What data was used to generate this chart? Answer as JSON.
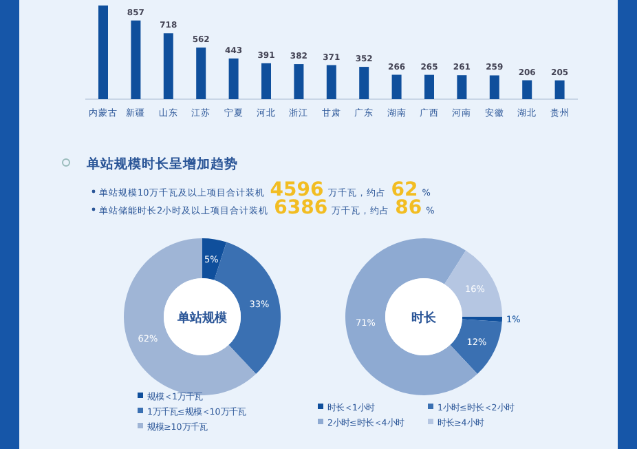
{
  "chart_data": [
    {
      "type": "bar",
      "categories": [
        "内蒙古",
        "新疆",
        "山东",
        "江苏",
        "宁夏",
        "河北",
        "浙江",
        "甘肃",
        "广东",
        "湖南",
        "广西",
        "河南",
        "安徽",
        "湖北",
        "贵州"
      ],
      "values": [
        1020,
        857,
        718,
        562,
        443,
        391,
        382,
        371,
        352,
        266,
        265,
        261,
        259,
        206,
        205
      ],
      "value_labels": [
        null,
        "857",
        "718",
        "562",
        "443",
        "391",
        "382",
        "371",
        "352",
        "266",
        "265",
        "261",
        "259",
        "206",
        "205"
      ],
      "color": "#0f4f9c"
    },
    {
      "type": "other",
      "title": "单站规模时长呈增加趋势",
      "annotations": [
        "单站规模10万千瓦及以上项目合计装机4596万千瓦，约占62%",
        "单站储能时长2小时及以上项目合计装机6386万千瓦，约占86%"
      ]
    },
    {
      "type": "donut",
      "title": "单站规模",
      "categories": [
        "规模＜1万千瓦",
        "1万千瓦≤规模＜10万千瓦",
        "规模≥10万千瓦"
      ],
      "values": [
        5,
        33,
        62
      ],
      "value_labels": [
        "5%",
        "33%",
        "62%"
      ],
      "colors": [
        "#0f4f9c",
        "#3a70b2",
        "#9fb5d6"
      ],
      "legend": "bottom"
    },
    {
      "type": "donut",
      "title": "时长",
      "categories": [
        "时长＜1小时",
        "1小时≤时长＜2小时",
        "2小时≤时长＜4小时",
        "时长≥4小时"
      ],
      "values": [
        1,
        12,
        71,
        16
      ],
      "value_labels": [
        "1%",
        "12%",
        "71%",
        "16%"
      ],
      "colors": [
        "#0f4f9c",
        "#3a70b2",
        "#8eaad2",
        "#b5c6e2"
      ],
      "legend": "bottom"
    }
  ]
}
